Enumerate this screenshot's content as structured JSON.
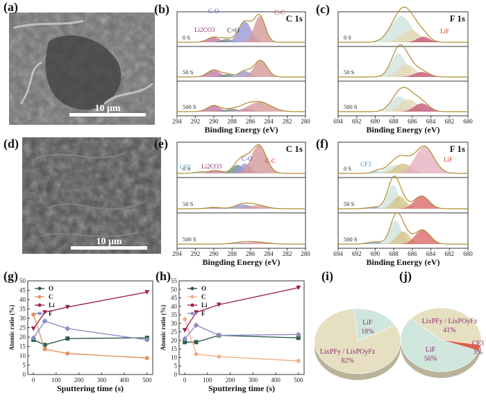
{
  "panels": {
    "a": {
      "label": "(a)",
      "scalebar": "10 μm"
    },
    "d": {
      "label": "(d)",
      "scalebar": "10 μm"
    },
    "b": {
      "label": "(b)"
    },
    "c": {
      "label": "(c)"
    },
    "e": {
      "label": "(e)"
    },
    "f": {
      "label": "(f)"
    },
    "g": {
      "label": "(g)"
    },
    "h": {
      "label": "(h)"
    },
    "i": {
      "label": "(i)"
    },
    "j": {
      "label": "(j)"
    }
  },
  "chart_data": [
    {
      "id": "b",
      "type": "area",
      "title": "C 1s",
      "xlabel": "Binding Energy (eV)",
      "xlim": [
        294,
        280
      ],
      "xticks": [
        "294",
        "292",
        "290",
        "288",
        "286",
        "284",
        "282",
        "280"
      ],
      "strips": [
        "0 S",
        "50 S",
        "500 S"
      ],
      "annotations": [
        {
          "text": "C-O",
          "color": "#4a5bb0"
        },
        {
          "text": "C-C",
          "color": "#c0392b"
        },
        {
          "text": "Li2CO3",
          "color": "#8b2f6e"
        },
        {
          "text": "C=O",
          "color": "#222222"
        }
      ]
    },
    {
      "id": "c",
      "type": "area",
      "title": "F 1s",
      "xlabel": "Binding Energy (eV)",
      "xlim": [
        694,
        680
      ],
      "xticks": [
        "694",
        "692",
        "690",
        "688",
        "686",
        "684",
        "682",
        "680"
      ],
      "strips": [
        "0 S",
        "50 S",
        "500 S"
      ],
      "annotations": [
        {
          "text": "LiF",
          "color": "#c0392b"
        }
      ]
    },
    {
      "id": "e",
      "type": "area",
      "title": "C 1s",
      "xlabel": "Bingding Energy (eV)",
      "xlim": [
        294,
        280
      ],
      "xticks": [
        "294",
        "292",
        "290",
        "288",
        "286",
        "284",
        "282",
        "280"
      ],
      "strips": [
        "0 S",
        "50 S",
        "500 S"
      ],
      "annotations": [
        {
          "text": "CF3",
          "color": "#3aa0c8"
        },
        {
          "text": "Li2CO3",
          "color": "#8b2f6e"
        },
        {
          "text": "C-O",
          "color": "#4a5bb0"
        },
        {
          "text": "C-C",
          "color": "#c0392b"
        }
      ]
    },
    {
      "id": "f",
      "type": "area",
      "title": "F 1s",
      "xlabel": "Binding Energy (eV)",
      "xlim": [
        694,
        680
      ],
      "xticks": [
        "694",
        "692",
        "690",
        "688",
        "686",
        "684",
        "682",
        "680"
      ],
      "strips": [
        "0 S",
        "50 S",
        "500 S"
      ],
      "annotations": [
        {
          "text": "CF3",
          "color": "#3aa0c8"
        },
        {
          "text": "LiF",
          "color": "#c0392b"
        }
      ]
    },
    {
      "id": "g",
      "type": "line",
      "xlabel": "Sputtering time (s)",
      "ylabel": "Atomic ratio (%)",
      "xlim": [
        0,
        500
      ],
      "ylim": [
        0,
        50
      ],
      "xticks": [
        "0",
        "100",
        "200",
        "300",
        "400",
        "500"
      ],
      "yticks": [
        "0",
        "5",
        "10",
        "15",
        "20",
        "25",
        "30",
        "35",
        "40",
        "45",
        "50"
      ],
      "x": [
        0,
        50,
        150,
        500
      ],
      "series": [
        {
          "name": "O",
          "color": "#2e5e4e",
          "values": [
            18.5,
            15.8,
            19.2,
            19.6
          ]
        },
        {
          "name": "C",
          "color": "#e3935a",
          "values": [
            32,
            13.5,
            11.2,
            8.8
          ]
        },
        {
          "name": "Li",
          "color": "#9c2250",
          "values": [
            24.5,
            33.2,
            36,
            44
          ]
        },
        {
          "name": "F",
          "color": "#8b8fc4",
          "values": [
            19.5,
            28.5,
            24.5,
            18.5
          ]
        }
      ]
    },
    {
      "id": "h",
      "type": "line",
      "xlabel": "Sputtering time (s)",
      "ylabel": "Atomic ratio (%)",
      "xlim": [
        0,
        500
      ],
      "ylim": [
        0,
        55
      ],
      "xticks": [
        "0",
        "100",
        "200",
        "300",
        "400",
        "500"
      ],
      "yticks": [
        "0",
        "5",
        "10",
        "15",
        "20",
        "25",
        "30",
        "35",
        "40",
        "45",
        "50",
        "55"
      ],
      "x": [
        0,
        50,
        150,
        500
      ],
      "series": [
        {
          "name": "O",
          "color": "#2e5e4e",
          "values": [
            19,
            19,
            23,
            21.5
          ]
        },
        {
          "name": "C",
          "color": "#f0b08a",
          "values": [
            32.5,
            12,
            10.5,
            8
          ]
        },
        {
          "name": "Li",
          "color": "#9c2250",
          "values": [
            26,
            36.5,
            41,
            51
          ]
        },
        {
          "name": "F",
          "color": "#8b8fc4",
          "values": [
            21,
            29,
            23,
            23.5
          ]
        }
      ]
    },
    {
      "id": "i",
      "type": "pie",
      "slices": [
        {
          "label": "LixPFy / LixPOyFz",
          "value": 82,
          "text": "82%",
          "color": "#e6dfc2"
        },
        {
          "label": "LiF",
          "value": 18,
          "text": "18%",
          "color": "#cfe6dd"
        }
      ]
    },
    {
      "id": "j",
      "type": "pie",
      "slices": [
        {
          "label": "LiF",
          "value": 56,
          "text": "56%",
          "color": "#cfe6dd"
        },
        {
          "label": "LixPFy / LixPOyFz",
          "value": 41,
          "text": "41%",
          "color": "#e6dfc2"
        },
        {
          "label": "CF3",
          "value": 3,
          "text": "3%",
          "color": "#d9634a"
        }
      ]
    }
  ]
}
